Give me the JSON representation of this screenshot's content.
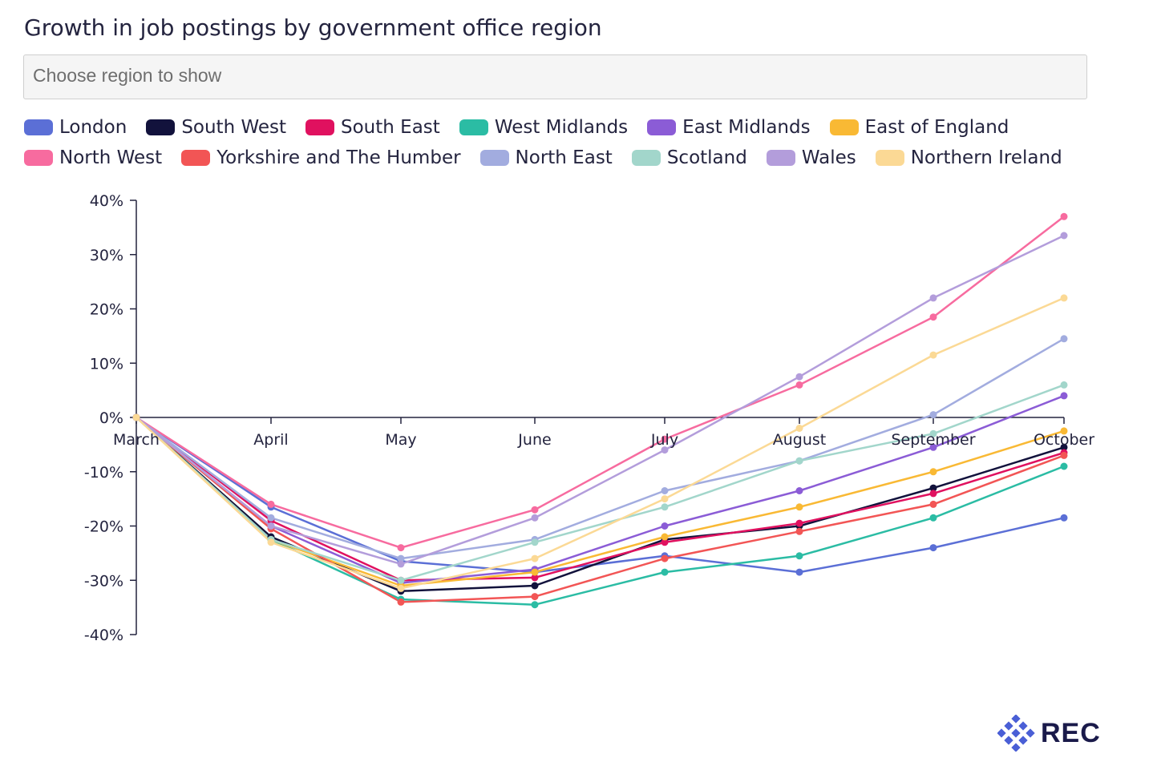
{
  "title": "Growth in job postings by government office region",
  "region_select": {
    "placeholder": "Choose region to show"
  },
  "logo": {
    "text": "REC"
  },
  "chart_data": {
    "type": "line",
    "title": "Growth in job postings by government office region",
    "x": [
      "March",
      "April",
      "May",
      "June",
      "July",
      "August",
      "September",
      "October"
    ],
    "ylim": [
      -40,
      40
    ],
    "yticks": [
      40,
      30,
      20,
      10,
      0,
      -10,
      -20,
      -30,
      -40
    ],
    "ytick_labels": [
      "40%",
      "30%",
      "20%",
      "10%",
      "0%",
      "-10%",
      "-20%",
      "-30%",
      "-40%"
    ],
    "grid": false,
    "legend_position": "top",
    "series": [
      {
        "name": "London",
        "color": "#5b6fd6",
        "values": [
          0,
          -16.5,
          -26.5,
          -28.5,
          -25.5,
          -28.5,
          -24,
          -18.5
        ]
      },
      {
        "name": "South West",
        "color": "#12123c",
        "values": [
          0,
          -22,
          -32,
          -31,
          -22.5,
          -20,
          -13,
          -5.5
        ]
      },
      {
        "name": "South East",
        "color": "#e0115f",
        "values": [
          0,
          -19,
          -30,
          -29.5,
          -23,
          -19.5,
          -14,
          -6.5
        ]
      },
      {
        "name": "West Midlands",
        "color": "#2bbca4",
        "values": [
          0,
          -22.5,
          -33.5,
          -34.5,
          -28.5,
          -25.5,
          -18.5,
          -9
        ]
      },
      {
        "name": "East Midlands",
        "color": "#8b5cd6",
        "values": [
          0,
          -20,
          -30.5,
          -28,
          -20,
          -13.5,
          -5.5,
          4
        ]
      },
      {
        "name": "East of England",
        "color": "#f9b934",
        "values": [
          0,
          -22.5,
          -31,
          -28.5,
          -22,
          -16.5,
          -10,
          -2.5
        ]
      },
      {
        "name": "North West",
        "color": "#f76b9f",
        "values": [
          0,
          -16,
          -24,
          -17,
          -4,
          6,
          18.5,
          37
        ]
      },
      {
        "name": "Yorkshire and The Humber",
        "color": "#f25555",
        "values": [
          0,
          -20.5,
          -34,
          -33,
          -26,
          -21,
          -16,
          -7
        ]
      },
      {
        "name": "North East",
        "color": "#a2acdf",
        "values": [
          0,
          -18.5,
          -26,
          -22.5,
          -13.5,
          -8,
          0.5,
          14.5
        ]
      },
      {
        "name": "Scotland",
        "color": "#a2d6cb",
        "values": [
          0,
          -22.5,
          -30,
          -23,
          -16.5,
          -8,
          -3,
          6
        ]
      },
      {
        "name": "Wales",
        "color": "#b39ddb",
        "values": [
          0,
          -20,
          -27,
          -18.5,
          -6,
          7.5,
          22,
          33.5
        ]
      },
      {
        "name": "Northern Ireland",
        "color": "#fbd995",
        "values": [
          0,
          -23,
          -31.5,
          -26,
          -15,
          -2,
          11.5,
          22
        ]
      }
    ]
  }
}
